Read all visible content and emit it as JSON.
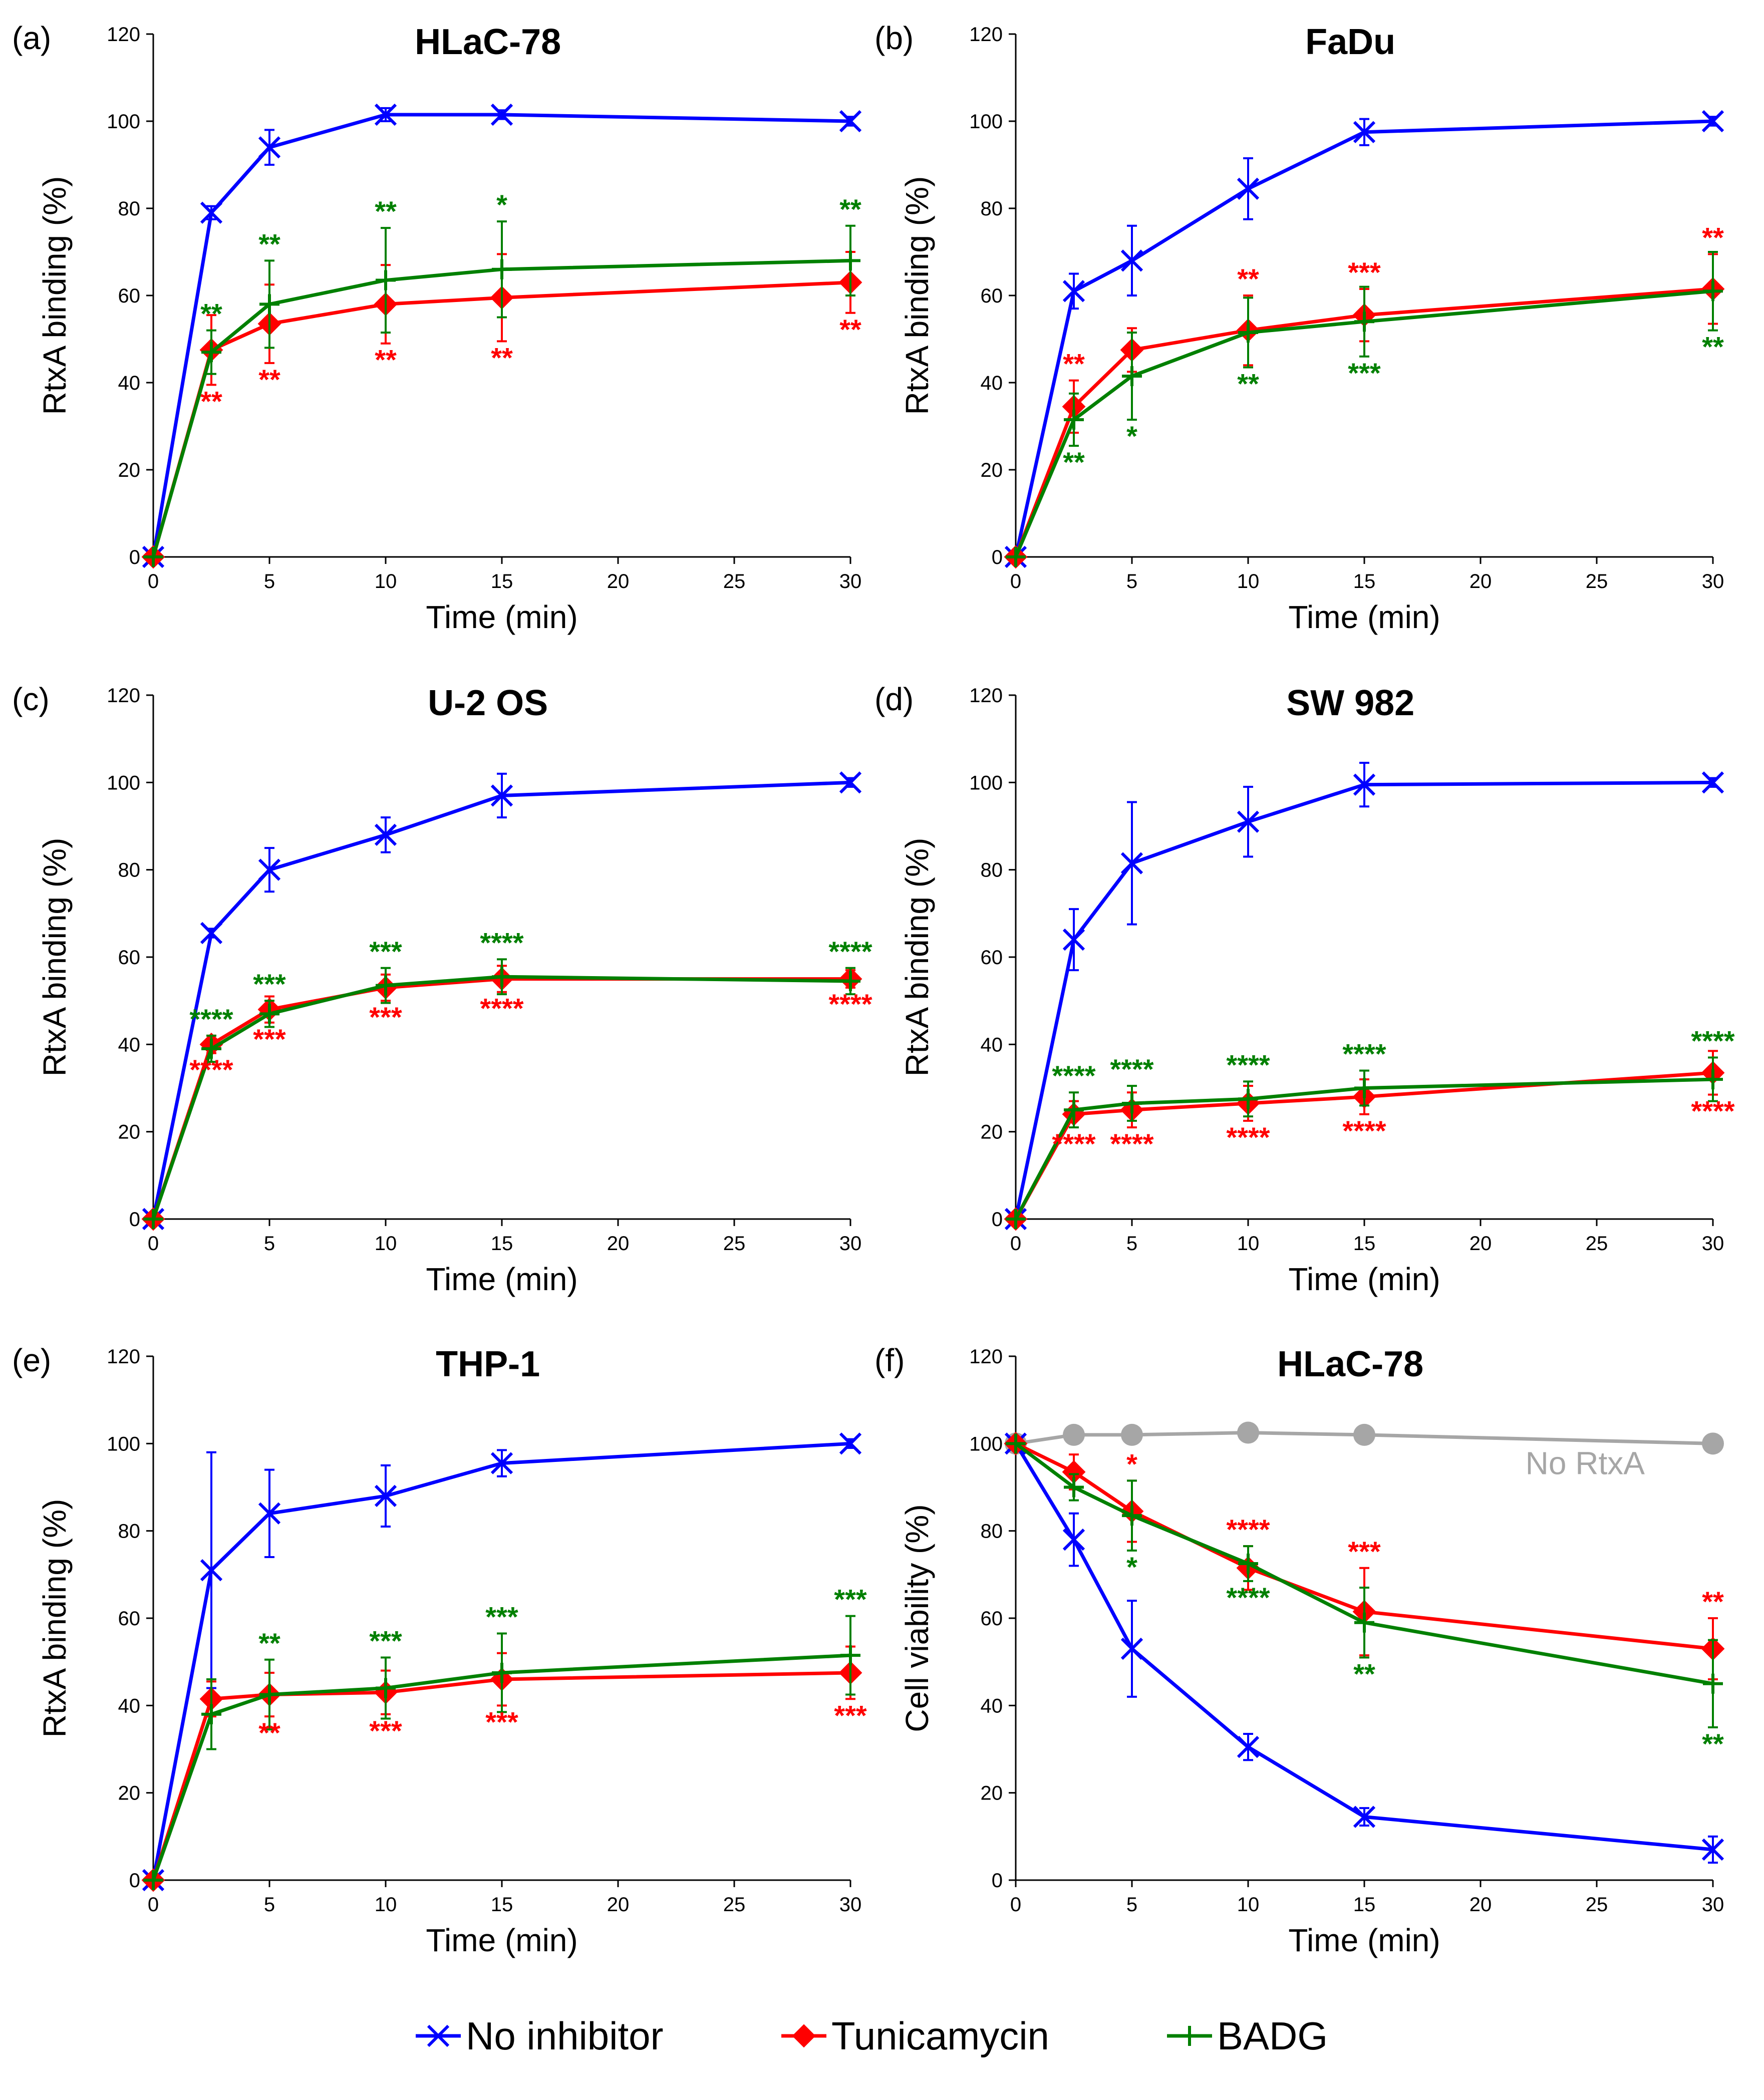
{
  "legend": {
    "items": [
      {
        "name": "No inhibitor",
        "color": "#0000ff",
        "marker": "x-marker"
      },
      {
        "name": "Tunicamycin",
        "color": "#ff0000",
        "marker": "diamond-marker"
      },
      {
        "name": "BADG",
        "color": "#008000",
        "marker": "plus-marker"
      }
    ]
  },
  "series_colors": {
    "No inhibitor": "#0000ff",
    "Tunicamycin": "#ff0000",
    "BADG": "#008000",
    "No RtxA": "#a6a6a6"
  },
  "chart_data": [
    {
      "panel": "(a)",
      "title": "HLaC-78",
      "type": "line",
      "xlabel": "Time (min)",
      "ylabel": "RtxA binding (%)",
      "xlim": [
        0,
        30
      ],
      "ylim": [
        0,
        120
      ],
      "xticks": [
        0,
        5,
        10,
        15,
        20,
        25,
        30
      ],
      "yticks": [
        0,
        20,
        40,
        60,
        80,
        100,
        120
      ],
      "x": [
        0,
        2.5,
        5,
        10,
        15,
        30
      ],
      "series": [
        {
          "name": "No inhibitor",
          "values": [
            0,
            79,
            94,
            101.5,
            101.5,
            100
          ],
          "errors": [
            0,
            1.5,
            4,
            1.5,
            1,
            1
          ]
        },
        {
          "name": "Tunicamycin",
          "values": [
            0,
            47.5,
            53.5,
            58,
            59.5,
            63
          ],
          "errors": [
            0,
            8,
            9,
            9,
            10,
            7
          ]
        },
        {
          "name": "BADG",
          "values": [
            0,
            47,
            58,
            63.5,
            66,
            68
          ],
          "errors": [
            0,
            5,
            10,
            12,
            11,
            8
          ]
        }
      ],
      "significance": [
        {
          "series": "BADG",
          "x": 2.5,
          "label": "**",
          "position": "above"
        },
        {
          "series": "BADG",
          "x": 5,
          "label": "**",
          "position": "above"
        },
        {
          "series": "BADG",
          "x": 10,
          "label": "**",
          "position": "above"
        },
        {
          "series": "BADG",
          "x": 15,
          "label": "*",
          "position": "above"
        },
        {
          "series": "BADG",
          "x": 30,
          "label": "**",
          "position": "above"
        },
        {
          "series": "Tunicamycin",
          "x": 2.5,
          "label": "**",
          "position": "below"
        },
        {
          "series": "Tunicamycin",
          "x": 5,
          "label": "**",
          "position": "below"
        },
        {
          "series": "Tunicamycin",
          "x": 10,
          "label": "**",
          "position": "below"
        },
        {
          "series": "Tunicamycin",
          "x": 15,
          "label": "**",
          "position": "below"
        },
        {
          "series": "Tunicamycin",
          "x": 30,
          "label": "**",
          "position": "below"
        }
      ]
    },
    {
      "panel": "(b)",
      "title": "FaDu",
      "type": "line",
      "xlabel": "Time (min)",
      "ylabel": "RtxA binding (%)",
      "xlim": [
        0,
        30
      ],
      "ylim": [
        0,
        120
      ],
      "xticks": [
        0,
        5,
        10,
        15,
        20,
        25,
        30
      ],
      "yticks": [
        0,
        20,
        40,
        60,
        80,
        100,
        120
      ],
      "x": [
        0,
        2.5,
        5,
        10,
        15,
        30
      ],
      "series": [
        {
          "name": "No inhibitor",
          "values": [
            0,
            61,
            68,
            84.5,
            97.5,
            100
          ],
          "errors": [
            0,
            4,
            8,
            7,
            3,
            1
          ]
        },
        {
          "name": "Tunicamycin",
          "values": [
            0,
            34.5,
            47.5,
            52,
            55.5,
            61.5
          ],
          "errors": [
            0,
            6,
            5,
            8,
            6,
            8
          ]
        },
        {
          "name": "BADG",
          "values": [
            0,
            31.5,
            41.5,
            51.5,
            54,
            61
          ],
          "errors": [
            0,
            6,
            10,
            8,
            8,
            9
          ]
        }
      ],
      "significance": [
        {
          "series": "Tunicamycin",
          "x": 2.5,
          "label": "**",
          "position": "above"
        },
        {
          "series": "Tunicamycin",
          "x": 10,
          "label": "**",
          "position": "above"
        },
        {
          "series": "Tunicamycin",
          "x": 15,
          "label": "***",
          "position": "above"
        },
        {
          "series": "Tunicamycin",
          "x": 30,
          "label": "**",
          "position": "above"
        },
        {
          "series": "BADG",
          "x": 2.5,
          "label": "**",
          "position": "below"
        },
        {
          "series": "BADG",
          "x": 5,
          "label": "*",
          "position": "below"
        },
        {
          "series": "BADG",
          "x": 10,
          "label": "**",
          "position": "below"
        },
        {
          "series": "BADG",
          "x": 15,
          "label": "***",
          "position": "below"
        },
        {
          "series": "BADG",
          "x": 30,
          "label": "**",
          "position": "below"
        }
      ]
    },
    {
      "panel": "(c)",
      "title": "U-2 OS",
      "type": "line",
      "xlabel": "Time (min)",
      "ylabel": "RtxA binding (%)",
      "xlim": [
        0,
        30
      ],
      "ylim": [
        0,
        120
      ],
      "xticks": [
        0,
        5,
        10,
        15,
        20,
        25,
        30
      ],
      "yticks": [
        0,
        20,
        40,
        60,
        80,
        100,
        120
      ],
      "x": [
        0,
        2.5,
        5,
        10,
        15,
        30
      ],
      "series": [
        {
          "name": "No inhibitor",
          "values": [
            0,
            65.5,
            80,
            88,
            97,
            100
          ],
          "errors": [
            0,
            1,
            5,
            4,
            5,
            1
          ]
        },
        {
          "name": "Tunicamycin",
          "values": [
            0,
            40,
            48,
            53,
            55,
            55
          ],
          "errors": [
            0,
            2,
            3,
            3,
            3,
            2
          ]
        },
        {
          "name": "BADG",
          "values": [
            0,
            39,
            47,
            53.5,
            55.5,
            54.5
          ],
          "errors": [
            0,
            3,
            3,
            4,
            4,
            3
          ]
        }
      ],
      "significance": [
        {
          "series": "BADG",
          "x": 2.5,
          "label": "****",
          "position": "above"
        },
        {
          "series": "BADG",
          "x": 5,
          "label": "***",
          "position": "above"
        },
        {
          "series": "BADG",
          "x": 10,
          "label": "***",
          "position": "above"
        },
        {
          "series": "BADG",
          "x": 15,
          "label": "****",
          "position": "above"
        },
        {
          "series": "BADG",
          "x": 30,
          "label": "****",
          "position": "above"
        },
        {
          "series": "Tunicamycin",
          "x": 2.5,
          "label": "****",
          "position": "below"
        },
        {
          "series": "Tunicamycin",
          "x": 5,
          "label": "***",
          "position": "below"
        },
        {
          "series": "Tunicamycin",
          "x": 10,
          "label": "***",
          "position": "below"
        },
        {
          "series": "Tunicamycin",
          "x": 15,
          "label": "****",
          "position": "below"
        },
        {
          "series": "Tunicamycin",
          "x": 30,
          "label": "****",
          "position": "below"
        }
      ]
    },
    {
      "panel": "(d)",
      "title": "SW 982",
      "type": "line",
      "xlabel": "Time (min)",
      "ylabel": "RtxA binding (%)",
      "xlim": [
        0,
        30
      ],
      "ylim": [
        0,
        120
      ],
      "xticks": [
        0,
        5,
        10,
        15,
        20,
        25,
        30
      ],
      "yticks": [
        0,
        20,
        40,
        60,
        80,
        100,
        120
      ],
      "x": [
        0,
        2.5,
        5,
        10,
        15,
        30
      ],
      "series": [
        {
          "name": "No inhibitor",
          "values": [
            0,
            64,
            81.5,
            91,
            99.5,
            100
          ],
          "errors": [
            0,
            7,
            14,
            8,
            5,
            1
          ]
        },
        {
          "name": "Tunicamycin",
          "values": [
            0,
            24,
            25,
            26.5,
            28,
            33.5
          ],
          "errors": [
            0,
            3,
            4,
            4,
            4,
            5
          ]
        },
        {
          "name": "BADG",
          "values": [
            0,
            25,
            26.5,
            27.5,
            30,
            32
          ],
          "errors": [
            0,
            4,
            4,
            4,
            4,
            5
          ]
        }
      ],
      "significance": [
        {
          "series": "BADG",
          "x": 2.5,
          "label": "****",
          "position": "above"
        },
        {
          "series": "BADG",
          "x": 5,
          "label": "****",
          "position": "above"
        },
        {
          "series": "BADG",
          "x": 10,
          "label": "****",
          "position": "above"
        },
        {
          "series": "BADG",
          "x": 15,
          "label": "****",
          "position": "above"
        },
        {
          "series": "BADG",
          "x": 30,
          "label": "****",
          "position": "above"
        },
        {
          "series": "Tunicamycin",
          "x": 2.5,
          "label": "****",
          "position": "below"
        },
        {
          "series": "Tunicamycin",
          "x": 5,
          "label": "****",
          "position": "below"
        },
        {
          "series": "Tunicamycin",
          "x": 10,
          "label": "****",
          "position": "below"
        },
        {
          "series": "Tunicamycin",
          "x": 15,
          "label": "****",
          "position": "below"
        },
        {
          "series": "Tunicamycin",
          "x": 30,
          "label": "****",
          "position": "below"
        }
      ]
    },
    {
      "panel": "(e)",
      "title": "THP-1",
      "type": "line",
      "xlabel": "Time (min)",
      "ylabel": "RtxA binding (%)",
      "xlim": [
        0,
        30
      ],
      "ylim": [
        0,
        120
      ],
      "xticks": [
        0,
        5,
        10,
        15,
        20,
        25,
        30
      ],
      "yticks": [
        0,
        20,
        40,
        60,
        80,
        100,
        120
      ],
      "x": [
        0,
        2.5,
        5,
        10,
        15,
        30
      ],
      "series": [
        {
          "name": "No inhibitor",
          "values": [
            0,
            71,
            84,
            88,
            95.5,
            100
          ],
          "errors": [
            0,
            27,
            10,
            7,
            3,
            1
          ]
        },
        {
          "name": "Tunicamycin",
          "values": [
            0,
            41.5,
            42.5,
            43,
            46,
            47.5
          ],
          "errors": [
            0,
            4,
            5,
            5,
            6,
            6
          ]
        },
        {
          "name": "BADG",
          "values": [
            0,
            38,
            42.5,
            44,
            47.5,
            51.5
          ],
          "errors": [
            0,
            8,
            8,
            7,
            9,
            9
          ]
        }
      ],
      "significance": [
        {
          "series": "BADG",
          "x": 5,
          "label": "**",
          "position": "above"
        },
        {
          "series": "BADG",
          "x": 10,
          "label": "***",
          "position": "above"
        },
        {
          "series": "BADG",
          "x": 15,
          "label": "***",
          "position": "above"
        },
        {
          "series": "BADG",
          "x": 30,
          "label": "***",
          "position": "above"
        },
        {
          "series": "Tunicamycin",
          "x": 5,
          "label": "**",
          "position": "below"
        },
        {
          "series": "Tunicamycin",
          "x": 10,
          "label": "***",
          "position": "below"
        },
        {
          "series": "Tunicamycin",
          "x": 15,
          "label": "***",
          "position": "below"
        },
        {
          "series": "Tunicamycin",
          "x": 30,
          "label": "***",
          "position": "below"
        }
      ]
    },
    {
      "panel": "(f)",
      "title": "HLaC-78",
      "type": "line",
      "xlabel": "Time (min)",
      "ylabel": "Cell viability (%)",
      "xlim": [
        0,
        30
      ],
      "ylim": [
        0,
        120
      ],
      "xticks": [
        0,
        5,
        10,
        15,
        20,
        25,
        30
      ],
      "yticks": [
        0,
        20,
        40,
        60,
        80,
        100,
        120
      ],
      "x": [
        0,
        2.5,
        5,
        10,
        15,
        30
      ],
      "annotation": {
        "text": "No RtxA",
        "x": 24.5,
        "y": 93
      },
      "series": [
        {
          "name": "No RtxA",
          "values": [
            100,
            102,
            102,
            102.5,
            102,
            100
          ],
          "errors": [
            0,
            0,
            0,
            0,
            0,
            0
          ]
        },
        {
          "name": "No inhibitor",
          "values": [
            100,
            78,
            53,
            30.5,
            14.5,
            7
          ],
          "errors": [
            0,
            6,
            11,
            3,
            2,
            3
          ]
        },
        {
          "name": "Tunicamycin",
          "values": [
            100,
            93.5,
            84.5,
            71.5,
            61.5,
            53
          ],
          "errors": [
            0,
            4,
            7,
            5,
            10,
            7
          ]
        },
        {
          "name": "BADG",
          "values": [
            100,
            90,
            83.5,
            72.5,
            59,
            45
          ],
          "errors": [
            0,
            3,
            8,
            4,
            8,
            10
          ]
        }
      ],
      "significance": [
        {
          "series": "Tunicamycin",
          "x": 5,
          "label": "*",
          "position": "above"
        },
        {
          "series": "Tunicamycin",
          "x": 10,
          "label": "****",
          "position": "above"
        },
        {
          "series": "Tunicamycin",
          "x": 15,
          "label": "***",
          "position": "above"
        },
        {
          "series": "Tunicamycin",
          "x": 30,
          "label": "**",
          "position": "above"
        },
        {
          "series": "BADG",
          "x": 5,
          "label": "*",
          "position": "below"
        },
        {
          "series": "BADG",
          "x": 10,
          "label": "****",
          "position": "below"
        },
        {
          "series": "BADG",
          "x": 15,
          "label": "**",
          "position": "below"
        },
        {
          "series": "BADG",
          "x": 30,
          "label": "**",
          "position": "below"
        }
      ]
    }
  ]
}
